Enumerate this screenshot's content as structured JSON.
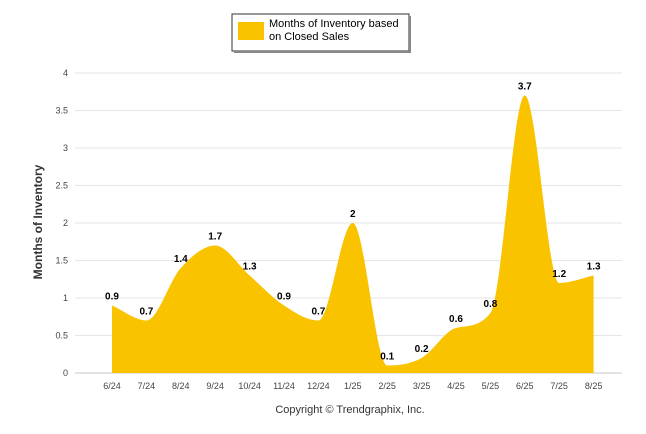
{
  "legend": {
    "label_line1": "Months of Inventory based",
    "label_line2": "on Closed Sales"
  },
  "footer": {
    "copyright": "Copyright © Trendgraphix, Inc."
  },
  "colors": {
    "series": "#F9C300",
    "grid": "#e6e6e6",
    "axis": "#c8c8c8"
  },
  "chart_data": {
    "type": "area",
    "categories": [
      "6/24",
      "7/24",
      "8/24",
      "9/24",
      "10/24",
      "11/24",
      "12/24",
      "1/25",
      "2/25",
      "3/25",
      "4/25",
      "5/25",
      "6/25",
      "7/25",
      "8/25"
    ],
    "series": [
      {
        "name": "Months of Inventory based on Closed Sales",
        "values": [
          0.9,
          0.7,
          1.4,
          1.7,
          1.3,
          0.9,
          0.7,
          2,
          0.1,
          0.2,
          0.6,
          0.8,
          3.7,
          1.2,
          1.3
        ]
      }
    ],
    "ylabel": "Months of Inventory",
    "ylim": [
      0,
      4
    ],
    "yticks": [
      "0",
      "0.5",
      "1",
      "1.5",
      "2",
      "2.5",
      "3",
      "3.5",
      "4"
    ],
    "grid": true,
    "legend_position": "top-center"
  }
}
